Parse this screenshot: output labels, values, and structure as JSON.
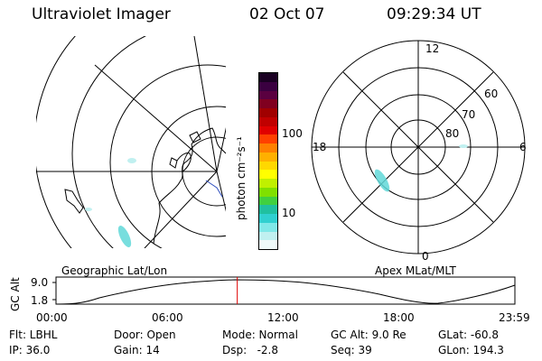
{
  "header": {
    "instrument": "Ultraviolet Imager",
    "date": "02 Oct 07",
    "time": "09:29:34 UT"
  },
  "colorbar": {
    "label": "photon cm⁻²s⁻¹",
    "ticks": [
      "100",
      "10"
    ],
    "colors": [
      "#1a0022",
      "#3a0040",
      "#5a0040",
      "#800020",
      "#a00000",
      "#c00000",
      "#e00000",
      "#ff4000",
      "#ff8000",
      "#ffb000",
      "#ffd800",
      "#ffff00",
      "#c0f000",
      "#80e000",
      "#40d040",
      "#20c0a0",
      "#30d0d0",
      "#80e8e8",
      "#c0f0f0",
      "#f0fafa"
    ]
  },
  "maps": {
    "left_label": "Geographic Lat/Lon",
    "right_label": "Apex MLat/MLT",
    "mlt_labels": {
      "top": "12",
      "left": "18",
      "right": "6",
      "bottom": "0"
    },
    "mlat_labels": [
      "60",
      "70",
      "80"
    ]
  },
  "timeline": {
    "axis_label": "GC Alt",
    "y_ticks": [
      "9.0",
      "1.8"
    ],
    "x_ticks": [
      "00:00",
      "06:00",
      "12:00",
      "18:00",
      "23:59"
    ],
    "current_fraction": 0.395,
    "marker_color": "#e00000"
  },
  "info": {
    "filter": "Flt: LBHL",
    "ip": "IP: 36.0",
    "door": "Door: Open",
    "gain": "Gain: 14",
    "mode": "Mode: Normal",
    "dsp": "Dsp:   -2.8",
    "gc_alt": "GC Alt: 9.0 Re",
    "seq": "Seq: 39",
    "glat": "GLat: -60.8",
    "glon": "GLon: 194.3"
  }
}
